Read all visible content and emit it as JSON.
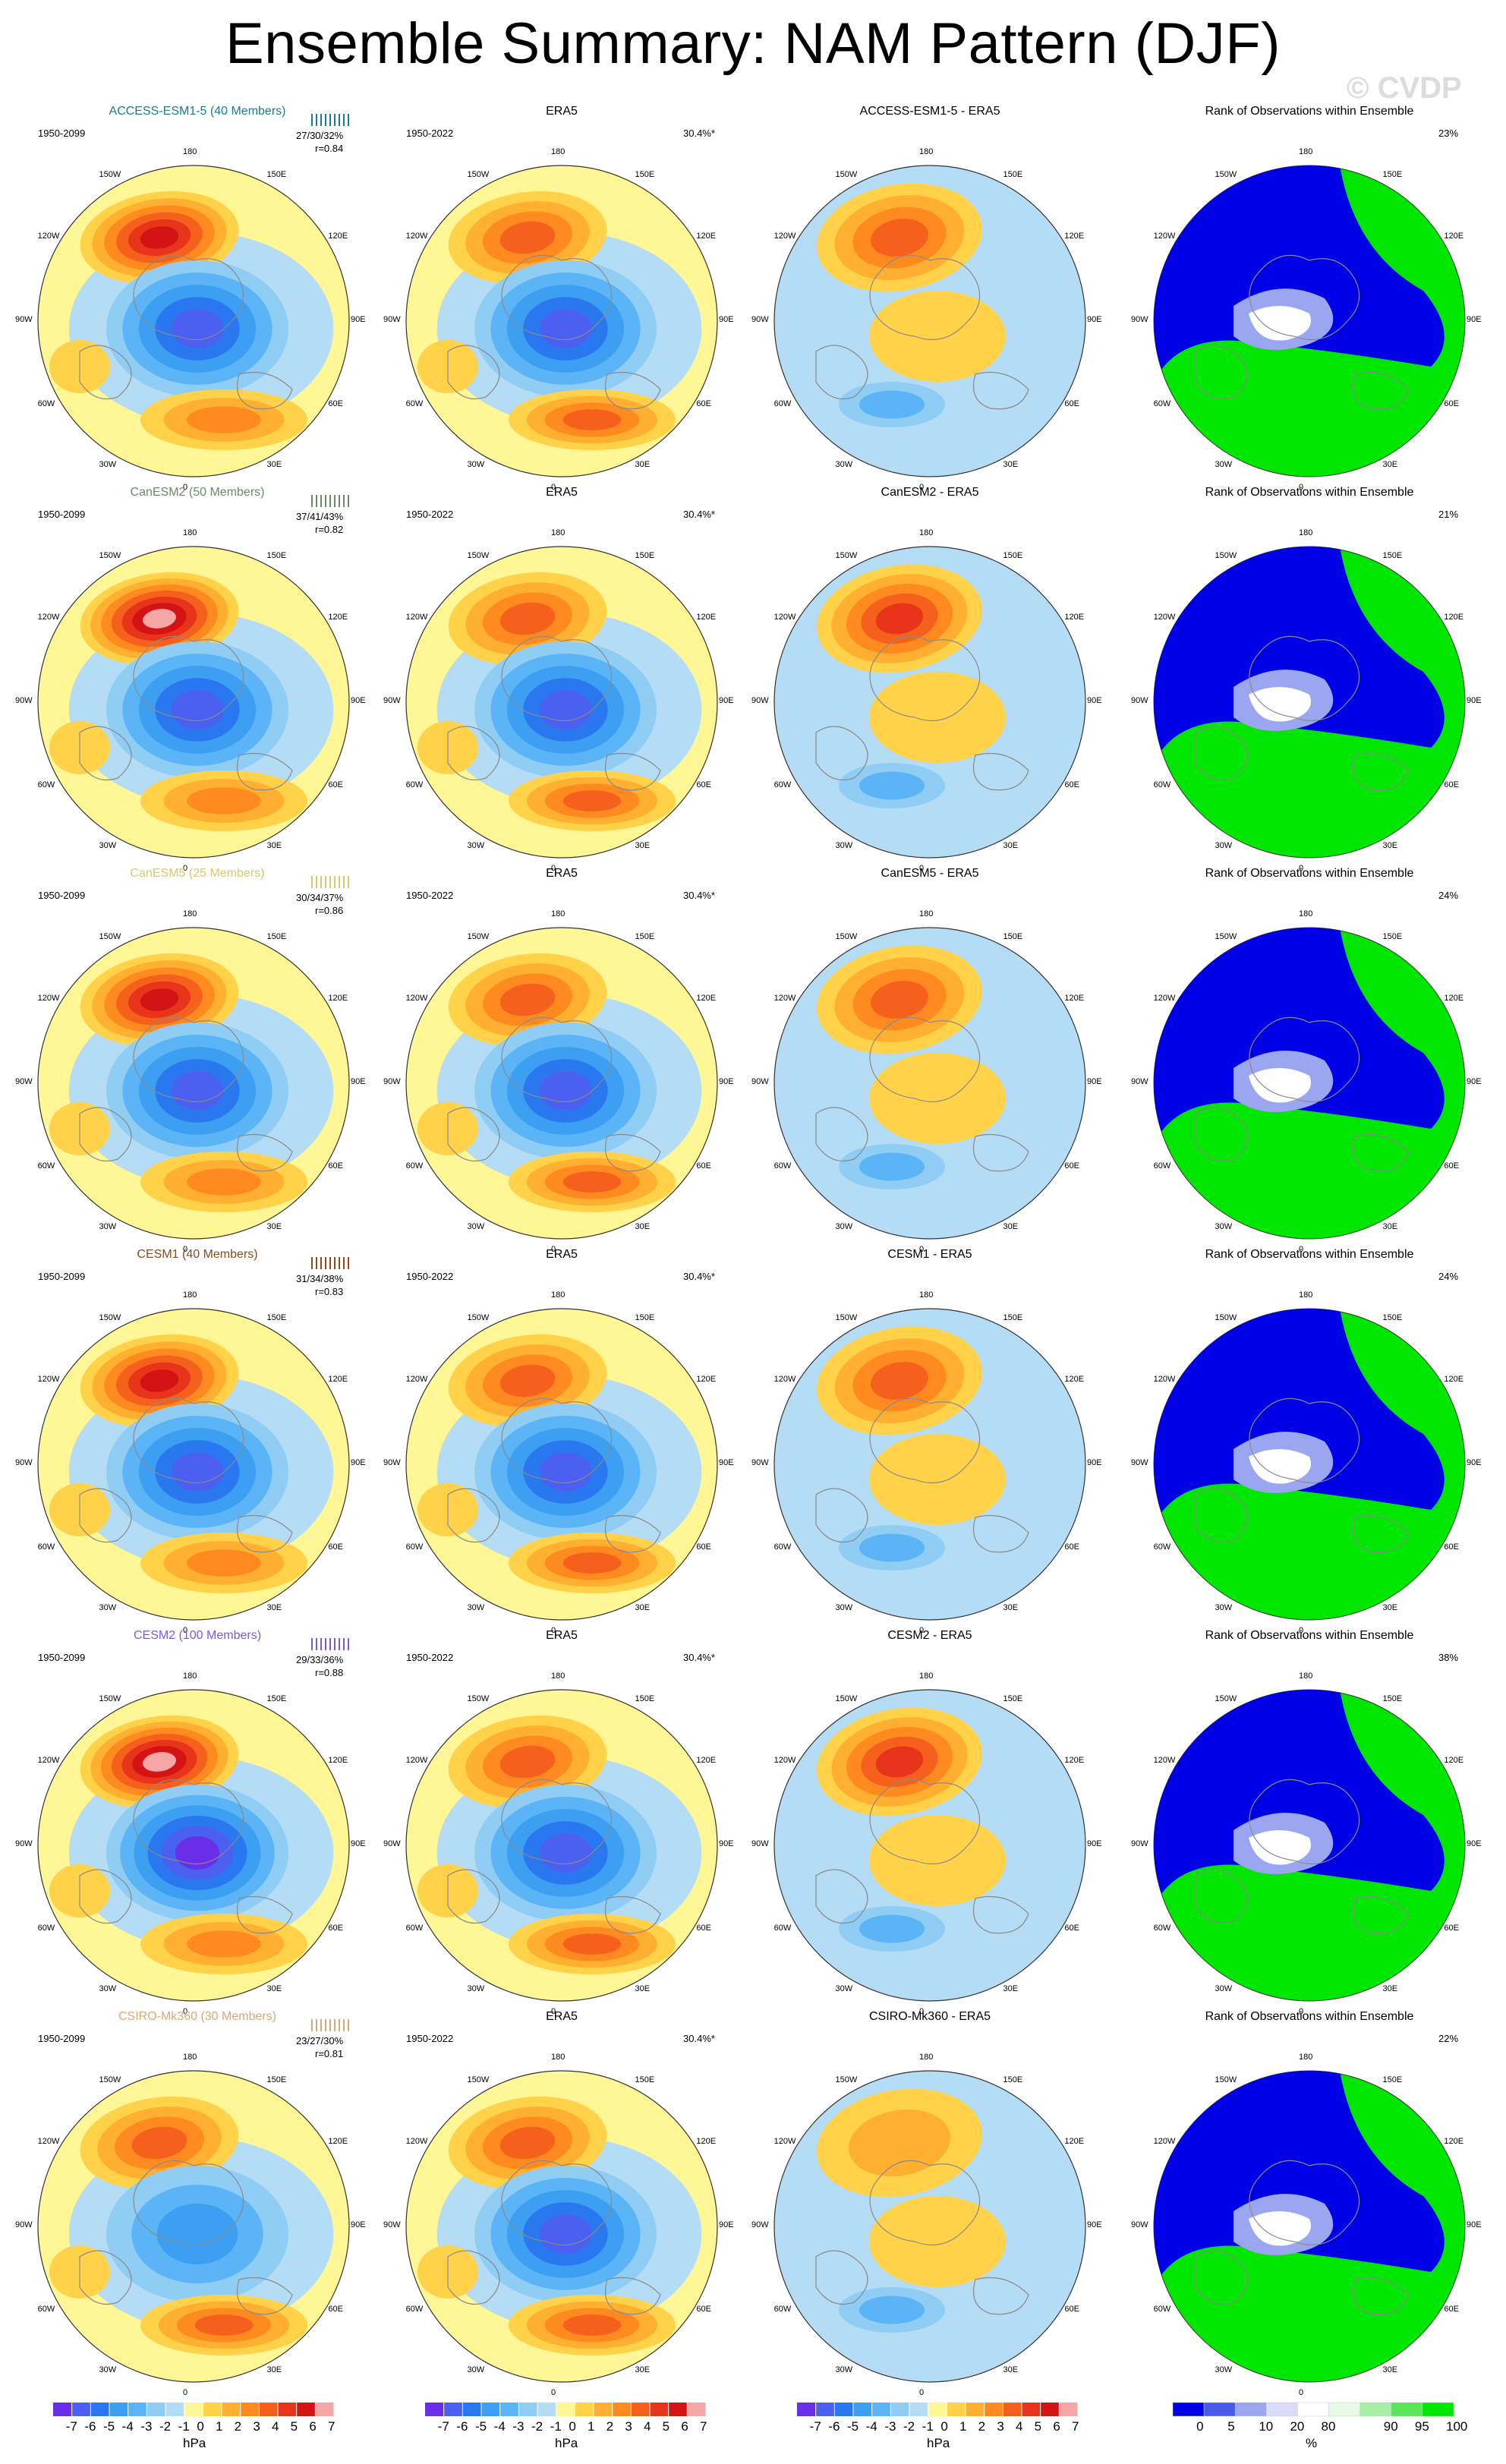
{
  "title": "Ensemble Summary: NAM Pattern (DJF)",
  "watermark": "© CVDP",
  "lon_labels": [
    "180",
    "150E",
    "120E",
    "90E",
    "60E",
    "30E",
    "0",
    "30W",
    "60W",
    "90W",
    "120W",
    "150W"
  ],
  "column_titles": {
    "obs": "ERA5",
    "rank": "Rank of Observations within Ensemble"
  },
  "obs_period": "1950-2022",
  "obs_pct": "30.4%*",
  "colors": {
    "ocean_blue": "#b4dcf5",
    "yellow": "#fff696",
    "blues": [
      "#6a2ee8",
      "#4b5ff0",
      "#2a78f0",
      "#3c9ff2",
      "#5ab4f5",
      "#8fcdf5"
    ],
    "reds": [
      "#ffd24a",
      "#ffb030",
      "#ff8a1f",
      "#f5601c",
      "#e8341a",
      "#d41414",
      "#f5a7a7"
    ],
    "rank": [
      "#0000e6",
      "#4a5ae8",
      "#9aa6f0",
      "#d8dcf8",
      "#ffffff",
      "#e6fae6",
      "#a6f0a6",
      "#5ae65a",
      "#00e600"
    ]
  },
  "chart_data": {
    "type": "heatmap",
    "units": "hPa",
    "colorbar_ticks": [
      "-7",
      "-6",
      "-5",
      "-4",
      "-3",
      "-2",
      "-1",
      "0",
      "1",
      "2",
      "3",
      "4",
      "5",
      "6",
      "7"
    ],
    "rank_colorbar_ticks": [
      "0",
      "5",
      "10",
      "20",
      "80",
      "90",
      "95",
      "100"
    ],
    "rank_unit": "%",
    "rows": [
      {
        "model": "ACCESS-ESM1-5 (40 Members)",
        "diff_title": "ACCESS-ESM1-5 - ERA5",
        "period": "1950-2099",
        "stats": "27/30/32%",
        "r": "r=0.84",
        "rank_pct": "23%",
        "color": "#1a7a9a",
        "pacific_high": 6,
        "polar_low": -5,
        "atlantic_high": 3
      },
      {
        "model": "CanESM2 (50 Members)",
        "diff_title": "CanESM2 - ERA5",
        "period": "1950-2099",
        "stats": "37/41/43%",
        "r": "r=0.82",
        "rank_pct": "21%",
        "color": "#6a8a6a",
        "pacific_high": 7,
        "polar_low": -5,
        "atlantic_high": 3
      },
      {
        "model": "CanESM5 (25 Members)",
        "diff_title": "CanESM5 - ERA5",
        "period": "1950-2099",
        "stats": "30/34/37%",
        "r": "r=0.86",
        "rank_pct": "24%",
        "color": "#d8c870",
        "pacific_high": 6,
        "polar_low": -5,
        "atlantic_high": 3
      },
      {
        "model": "CESM1 (40 Members)",
        "diff_title": "CESM1 - ERA5",
        "period": "1950-2099",
        "stats": "31/34/38%",
        "r": "r=0.83",
        "rank_pct": "24%",
        "color": "#8a4a1a",
        "pacific_high": 6,
        "polar_low": -5,
        "atlantic_high": 3
      },
      {
        "model": "CESM2 (100 Members)",
        "diff_title": "CESM2 - ERA5",
        "period": "1950-2099",
        "stats": "29/33/36%",
        "r": "r=0.88",
        "rank_pct": "38%",
        "color": "#7a5ad8",
        "pacific_high": 7,
        "polar_low": -6,
        "atlantic_high": 3
      },
      {
        "model": "CSIRO-Mk360 (30 Members)",
        "diff_title": "CSIRO-Mk360 - ERA5",
        "period": "1950-2099",
        "stats": "23/27/30%",
        "r": "r=0.81",
        "rank_pct": "22%",
        "color": "#d8a878",
        "pacific_high": 4,
        "polar_low": -3,
        "atlantic_high": 4
      }
    ]
  }
}
